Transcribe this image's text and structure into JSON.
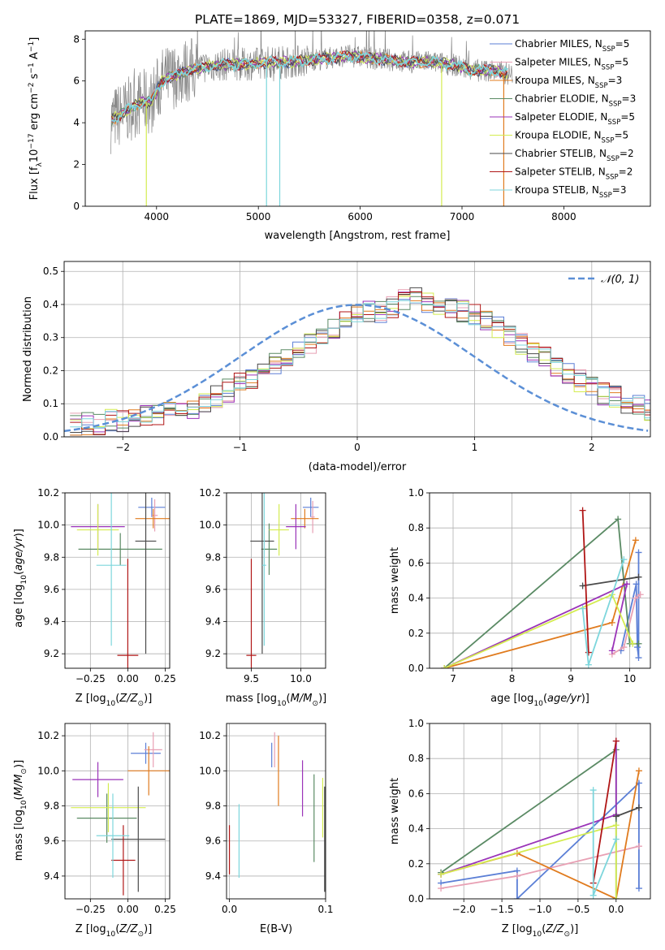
{
  "figure": {
    "title": "PLATE=1869, MJD=53327, FIBERID=0358, z=0.071",
    "colors": {
      "Chabrier MILES": "#5b7fd6",
      "Salpeter MILES": "#e8a0b4",
      "Kroupa MILES": "#e07b1e",
      "Chabrier ELODIE": "#5a8a64",
      "Salpeter ELODIE": "#9a33b8",
      "Kroupa ELODIE": "#d4ec50",
      "Chabrier STELIB": "#4a4a4a",
      "Salpeter STELIB": "#b01616",
      "Kroupa STELIB": "#7dd6dc",
      "spectrum": "#888888",
      "normal_curve": "#5b8fd6"
    }
  },
  "chart_data": [
    {
      "id": "spectrum",
      "type": "line",
      "title": "PLATE=1869, MJD=53327, FIBERID=0358, z=0.071",
      "xlabel": "wavelength [Angstrom, rest frame]",
      "ylabel": "Flux [f_λ 10^-17 erg cm^-2 s^-1 A^-1]",
      "xlim": [
        3300,
        8850
      ],
      "ylim": [
        0,
        8.4
      ],
      "xticks": [
        4000,
        5000,
        6000,
        7000,
        8000
      ],
      "yticks": [
        0,
        2,
        4,
        6,
        8
      ],
      "grid": false,
      "legend_position": "right",
      "spectrum_profile": {
        "x": [
          3550,
          3650,
          3750,
          3850,
          3950,
          4050,
          4150,
          4300,
          4500,
          4700,
          4900,
          5100,
          5300,
          5500,
          5700,
          5900,
          6100,
          6300,
          6500,
          6700,
          6900,
          7100,
          7300,
          7500
        ],
        "y": [
          4.1,
          4.4,
          4.7,
          5.0,
          5.0,
          6.0,
          6.2,
          6.5,
          6.7,
          6.8,
          6.8,
          6.9,
          6.9,
          7.0,
          7.1,
          7.2,
          7.1,
          7.0,
          6.9,
          6.9,
          6.8,
          6.5,
          6.5,
          6.3
        ]
      },
      "spikes_down": [
        {
          "x": 3900,
          "y": 0
        },
        {
          "x": 5080,
          "y": 0
        },
        {
          "x": 5210,
          "y": 0
        },
        {
          "x": 6800,
          "y": 0
        },
        {
          "x": 7410,
          "y": 0
        }
      ],
      "legend": [
        {
          "name": "Chabrier MILES",
          "nssp": "5"
        },
        {
          "name": "Salpeter MILES",
          "nssp": "5"
        },
        {
          "name": "Kroupa MILES",
          "nssp": "3"
        },
        {
          "name": "Chabrier ELODIE",
          "nssp": "3"
        },
        {
          "name": "Salpeter ELODIE",
          "nssp": "5"
        },
        {
          "name": "Kroupa ELODIE",
          "nssp": "5"
        },
        {
          "name": "Chabrier STELIB",
          "nssp": "2"
        },
        {
          "name": "Salpeter STELIB",
          "nssp": "2"
        },
        {
          "name": "Kroupa STELIB",
          "nssp": "3"
        }
      ]
    },
    {
      "id": "residuals",
      "type": "line",
      "xlabel": "(data-model)/error",
      "ylabel": "Normed distribution",
      "xlim": [
        -2.5,
        2.5
      ],
      "ylim": [
        0,
        0.53
      ],
      "xticks": [
        -2,
        -1,
        0,
        1,
        2
      ],
      "yticks": [
        0.0,
        0.1,
        0.2,
        0.3,
        0.4,
        0.5
      ],
      "grid": true,
      "legend_position": "top-right",
      "normal_legend": "𝒩(0, 1)",
      "bin_width": 0.1,
      "histogram_base": [
        0.04,
        0.04,
        0.04,
        0.05,
        0.05,
        0.06,
        0.06,
        0.06,
        0.07,
        0.08,
        0.09,
        0.11,
        0.12,
        0.14,
        0.16,
        0.18,
        0.2,
        0.22,
        0.24,
        0.27,
        0.28,
        0.31,
        0.33,
        0.35,
        0.37,
        0.38,
        0.38,
        0.39,
        0.41,
        0.42,
        0.41,
        0.4,
        0.39,
        0.38,
        0.37,
        0.35,
        0.33,
        0.3,
        0.28,
        0.26,
        0.24,
        0.21,
        0.19,
        0.17,
        0.15,
        0.13,
        0.12,
        0.1,
        0.09,
        0.08,
        0.07,
        0.06,
        0.05,
        0.05,
        0.04,
        0.04,
        0.04,
        0.03,
        0.03,
        0.03
      ]
    },
    {
      "id": "age_vs_Z",
      "type": "scatter",
      "xlabel": "Z [log10(Z/Z☉)]",
      "ylabel": "age [log10(age/yr)]",
      "xlim": [
        -0.42,
        0.28
      ],
      "ylim": [
        9.11,
        10.2
      ],
      "xticks": [
        -0.25,
        0.0,
        0.25
      ],
      "xtick_labels": [
        "−0.25",
        "0.00",
        "0.25"
      ],
      "yticks": [
        9.2,
        9.4,
        9.6,
        9.8,
        10.0,
        10.2
      ],
      "grid": true,
      "points": [
        {
          "series": "Chabrier MILES",
          "x": 0.16,
          "y": 10.11,
          "xerr": 0.09,
          "yerr": 0.06
        },
        {
          "series": "Salpeter MILES",
          "x": 0.18,
          "y": 10.06,
          "xerr": 0.02,
          "yerr": 0.1
        },
        {
          "series": "Kroupa MILES",
          "x": 0.17,
          "y": 10.04,
          "xerr": 0.12,
          "yerr": 0.06
        },
        {
          "series": "Chabrier ELODIE",
          "x": -0.05,
          "y": 9.85,
          "xerr": 0.28,
          "yerr": 0.1
        },
        {
          "series": "Salpeter ELODIE",
          "x": -0.2,
          "y": 9.99,
          "xerr": 0.18,
          "yerr": 0.14
        },
        {
          "series": "Kroupa ELODIE",
          "x": -0.2,
          "y": 9.97,
          "xerr": 0.14,
          "yerr": 0.16
        },
        {
          "series": "Chabrier STELIB",
          "x": 0.12,
          "y": 9.9,
          "xerr": 0.07,
          "yerr": 0.7
        },
        {
          "series": "Salpeter STELIB",
          "x": 0.0,
          "y": 9.19,
          "xerr": 0.07,
          "yerr": 0.6
        },
        {
          "series": "Kroupa STELIB",
          "x": -0.11,
          "y": 9.75,
          "xerr": 0.1,
          "yerr": 0.5
        }
      ]
    },
    {
      "id": "age_vs_mass",
      "type": "scatter",
      "xlabel": "mass [log10(M/M☉)]",
      "ylabel": "",
      "xlim": [
        9.25,
        10.25
      ],
      "ylim": [
        9.11,
        10.2
      ],
      "xticks": [
        9.5,
        10.0
      ],
      "yticks": [
        9.2,
        9.4,
        9.6,
        9.8,
        10.0,
        10.2
      ],
      "grid": true,
      "points": [
        {
          "series": "Chabrier MILES",
          "x": 10.1,
          "y": 10.11,
          "xerr": 0.08,
          "yerr": 0.06
        },
        {
          "series": "Salpeter MILES",
          "x": 10.12,
          "y": 10.05,
          "xerr": 0.02,
          "yerr": 0.1
        },
        {
          "series": "Kroupa MILES",
          "x": 10.04,
          "y": 10.04,
          "xerr": 0.14,
          "yerr": 0.06
        },
        {
          "series": "Chabrier ELODIE",
          "x": 9.68,
          "y": 9.85,
          "xerr": 0.08,
          "yerr": 0.16
        },
        {
          "series": "Salpeter ELODIE",
          "x": 9.95,
          "y": 9.99,
          "xerr": 0.1,
          "yerr": 0.14
        },
        {
          "series": "Kroupa ELODIE",
          "x": 9.78,
          "y": 9.97,
          "xerr": 0.1,
          "yerr": 0.16
        },
        {
          "series": "Chabrier STELIB",
          "x": 9.61,
          "y": 9.9,
          "xerr": 0.12,
          "yerr": 0.7
        },
        {
          "series": "Salpeter STELIB",
          "x": 9.5,
          "y": 9.19,
          "xerr": 0.05,
          "yerr": 0.6
        },
        {
          "series": "Kroupa STELIB",
          "x": 9.63,
          "y": 9.75,
          "xerr": 0.02,
          "yerr": 0.5
        }
      ]
    },
    {
      "id": "weight_vs_age",
      "type": "line",
      "xlabel": "age [log10(age/yr)]",
      "ylabel": "mass weight",
      "xlim": [
        6.6,
        10.35
      ],
      "ylim": [
        0,
        1.0
      ],
      "xticks": [
        7,
        8,
        9,
        10
      ],
      "yticks": [
        0.0,
        0.2,
        0.4,
        0.6,
        0.8,
        1.0
      ],
      "grid": true,
      "series": [
        {
          "name": "Chabrier MILES",
          "x": [
            10.15,
            10.15,
            10.13,
            10.11,
            9.85
          ],
          "y": [
            0.66,
            0.06,
            0.12,
            0.48,
            0.1
          ]
        },
        {
          "name": "Salpeter MILES",
          "x": [
            10.18,
            10.1,
            9.9,
            9.7
          ],
          "y": [
            0.42,
            0.4,
            0.12,
            0.08
          ]
        },
        {
          "name": "Kroupa MILES",
          "x": [
            6.85,
            9.7,
            10.1
          ],
          "y": [
            0.0,
            0.26,
            0.73
          ]
        },
        {
          "name": "Chabrier ELODIE",
          "x": [
            6.85,
            9.8,
            10.0,
            10.15
          ],
          "y": [
            0.0,
            0.85,
            0.14,
            0.14
          ]
        },
        {
          "name": "Salpeter ELODIE",
          "x": [
            6.85,
            9.95,
            9.7
          ],
          "y": [
            0.0,
            0.48,
            0.1
          ]
        },
        {
          "name": "Kroupa ELODIE",
          "x": [
            6.85,
            9.7,
            10.05
          ],
          "y": [
            0.0,
            0.42,
            0.14
          ]
        },
        {
          "name": "Chabrier STELIB",
          "x": [
            9.2,
            10.15
          ],
          "y": [
            0.47,
            0.52
          ]
        },
        {
          "name": "Salpeter STELIB",
          "x": [
            9.2,
            9.3
          ],
          "y": [
            0.9,
            0.09
          ]
        },
        {
          "name": "Kroupa STELIB",
          "x": [
            9.2,
            9.3,
            9.9
          ],
          "y": [
            0.34,
            0.02,
            0.62
          ]
        }
      ]
    },
    {
      "id": "mass_vs_Z",
      "type": "scatter",
      "xlabel": "Z [log10(Z/Z☉)]",
      "ylabel": "mass [log10(M/M☉)]",
      "xlim": [
        -0.42,
        0.28
      ],
      "ylim": [
        9.27,
        10.27
      ],
      "xticks": [
        -0.25,
        0.0,
        0.25
      ],
      "xtick_labels": [
        "−0.25",
        "0.00",
        "0.25"
      ],
      "yticks": [
        9.4,
        9.6,
        9.8,
        10.0,
        10.2
      ],
      "grid": true,
      "points": [
        {
          "series": "Chabrier MILES",
          "x": 0.12,
          "y": 10.1,
          "xerr": 0.1,
          "yerr": 0.06
        },
        {
          "series": "Salpeter MILES",
          "x": 0.17,
          "y": 10.12,
          "xerr": 0.06,
          "yerr": 0.1
        },
        {
          "series": "Kroupa MILES",
          "x": 0.14,
          "y": 10.0,
          "xerr": 0.14,
          "yerr": 0.14
        },
        {
          "series": "Chabrier ELODIE",
          "x": -0.14,
          "y": 9.73,
          "xerr": 0.2,
          "yerr": 0.14
        },
        {
          "series": "Salpeter ELODIE",
          "x": -0.2,
          "y": 9.95,
          "xerr": 0.17,
          "yerr": 0.1
        },
        {
          "series": "Kroupa ELODIE",
          "x": -0.13,
          "y": 9.79,
          "xerr": 0.25,
          "yerr": 0.14
        },
        {
          "series": "Chabrier STELIB",
          "x": 0.07,
          "y": 9.61,
          "xerr": 0.18,
          "yerr": 0.3
        },
        {
          "series": "Salpeter STELIB",
          "x": -0.03,
          "y": 9.49,
          "xerr": 0.08,
          "yerr": 0.2
        },
        {
          "series": "Kroupa STELIB",
          "x": -0.1,
          "y": 9.63,
          "xerr": 0.11,
          "yerr": 0.24
        }
      ]
    },
    {
      "id": "mass_vs_ebv",
      "type": "scatter",
      "xlabel": "E(B-V)",
      "ylabel": "",
      "xlim": [
        -0.003,
        0.1
      ],
      "ylim": [
        9.27,
        10.27
      ],
      "xticks": [
        0.0,
        0.1
      ],
      "yticks": [
        9.4,
        9.6,
        9.8,
        10.0,
        10.2
      ],
      "grid": true,
      "points": [
        {
          "series": "Chabrier MILES",
          "x": 0.044,
          "y": 10.09,
          "yerr": 0.07
        },
        {
          "series": "Salpeter MILES",
          "x": 0.047,
          "y": 10.12,
          "yerr": 0.1
        },
        {
          "series": "Kroupa MILES",
          "x": 0.051,
          "y": 10.0,
          "yerr": 0.2
        },
        {
          "series": "Chabrier ELODIE",
          "x": 0.088,
          "y": 9.73,
          "yerr": 0.25
        },
        {
          "series": "Salpeter ELODIE",
          "x": 0.076,
          "y": 9.9,
          "yerr": 0.16
        },
        {
          "series": "Kroupa ELODIE",
          "x": 0.097,
          "y": 9.79,
          "yerr": 0.17
        },
        {
          "series": "Chabrier STELIB",
          "x": 0.099,
          "y": 9.61,
          "yerr": 0.3
        },
        {
          "series": "Salpeter STELIB",
          "x": 0.0,
          "y": 9.55,
          "yerr": 0.14
        },
        {
          "series": "Kroupa STELIB",
          "x": 0.01,
          "y": 9.6,
          "yerr": 0.21
        }
      ]
    },
    {
      "id": "weight_vs_Z",
      "type": "line",
      "xlabel": "Z [log10(Z/Z☉)]",
      "ylabel": "mass weight",
      "xlim": [
        -2.45,
        0.45
      ],
      "ylim": [
        0,
        1.0
      ],
      "xticks": [
        -2.0,
        -1.5,
        -1.0,
        -0.5,
        0.0
      ],
      "xtick_labels": [
        "−2.0",
        "−1.5",
        "−1.0",
        "−0.5",
        "0.0"
      ],
      "yticks": [
        0.0,
        0.2,
        0.4,
        0.6,
        0.8,
        1.0
      ],
      "grid": true,
      "series": [
        {
          "name": "Chabrier MILES",
          "x": [
            -2.3,
            -1.3,
            -1.3,
            0.3,
            0.3
          ],
          "y": [
            0.09,
            0.16,
            0.0,
            0.66,
            0.06
          ]
        },
        {
          "name": "Salpeter MILES",
          "x": [
            -2.3,
            -1.3,
            0.3
          ],
          "y": [
            0.06,
            0.13,
            0.3
          ]
        },
        {
          "name": "Kroupa MILES",
          "x": [
            -2.3,
            -1.3,
            0.0,
            0.3
          ],
          "y": [
            0.14,
            0.26,
            0.0,
            0.73
          ]
        },
        {
          "name": "Chabrier ELODIE",
          "x": [
            -2.3,
            0.0,
            0.0
          ],
          "y": [
            0.15,
            0.85,
            0.0
          ]
        },
        {
          "name": "Salpeter ELODIE",
          "x": [
            -2.3,
            0.0,
            0.0
          ],
          "y": [
            0.14,
            0.48,
            0.9
          ]
        },
        {
          "name": "Kroupa ELODIE",
          "x": [
            -2.3,
            0.0,
            0.0
          ],
          "y": [
            0.14,
            0.42,
            0.0
          ]
        },
        {
          "name": "Chabrier STELIB",
          "x": [
            0.0,
            0.3
          ],
          "y": [
            0.47,
            0.52
          ]
        },
        {
          "name": "Salpeter STELIB",
          "x": [
            -0.3,
            0.0
          ],
          "y": [
            0.09,
            0.9
          ]
        },
        {
          "name": "Kroupa STELIB",
          "x": [
            -0.3,
            -0.3,
            0.0
          ],
          "y": [
            0.62,
            0.02,
            0.34
          ]
        }
      ]
    }
  ]
}
